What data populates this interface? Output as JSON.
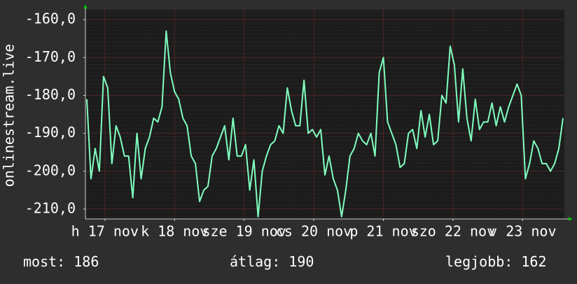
{
  "chart_data": {
    "type": "line",
    "y_label": "onlinestream.live",
    "color": "#80ffbf",
    "grid": true,
    "xlim": [
      0,
      172
    ],
    "xticks": [
      {
        "value": 7,
        "label": "h 17 nov"
      },
      {
        "value": 32,
        "label": "k 18 nov"
      },
      {
        "value": 57,
        "label": "sze 19 nov"
      },
      {
        "value": 82,
        "label": "cs 20 nov"
      },
      {
        "value": 107,
        "label": "p 21 nov"
      },
      {
        "value": 132,
        "label": "szo 22 nov"
      },
      {
        "value": 157,
        "label": "v 23 nov"
      }
    ],
    "ylim": [
      -212.6,
      -157.4
    ],
    "yticks": [
      {
        "value": -160,
        "label": "-160,0"
      },
      {
        "value": -170,
        "label": "-170,0"
      },
      {
        "value": -180,
        "label": "-180,0"
      },
      {
        "value": -190,
        "label": "-190,0"
      },
      {
        "value": -200,
        "label": "-200,0"
      },
      {
        "value": -210,
        "label": "-210,0"
      }
    ],
    "x": [
      0.5,
      2,
      3.5,
      5,
      6.5,
      8,
      9.5,
      11,
      12.5,
      14,
      15.5,
      17,
      18.5,
      20,
      21.5,
      23,
      24.5,
      26,
      27.5,
      29,
      30.5,
      32,
      33.5,
      35,
      36.5,
      38,
      39.5,
      41,
      42.5,
      44,
      45.5,
      47,
      48.5,
      50,
      51.5,
      53,
      54.5,
      56,
      57.5,
      59,
      60.5,
      62,
      63.5,
      65,
      66.5,
      68,
      69.5,
      71,
      72.5,
      74,
      75.5,
      77,
      78.5,
      80,
      81.5,
      83,
      84.5,
      86,
      87.5,
      89,
      90.5,
      92,
      93.5,
      95,
      96.5,
      98,
      99.5,
      101,
      102.5,
      104,
      105.5,
      107,
      108.5,
      110,
      111.5,
      113,
      114.5,
      116,
      117.5,
      119,
      120.5,
      122,
      123.5,
      125,
      126.5,
      128,
      129.5,
      131,
      132.5,
      134,
      135.5,
      137,
      138.5,
      140,
      141.5,
      143,
      144.5,
      146,
      147.5,
      149,
      150.5,
      152,
      153.5,
      155,
      156.5,
      158,
      159.5,
      161,
      162.5,
      164,
      165.5,
      167,
      168.5,
      170,
      171.5
    ],
    "values": [
      -181,
      -202,
      -194,
      -200,
      -175,
      -178,
      -198,
      -188,
      -191,
      -196,
      -196,
      -207,
      -190,
      -202,
      -194,
      -191,
      -186,
      -187,
      -183,
      -163,
      -174,
      -179,
      -181,
      -186,
      -188,
      -196,
      -198,
      -208,
      -205,
      -204,
      -196,
      -194,
      -191,
      -188,
      -197,
      -186,
      -196,
      -196,
      -193,
      -205,
      -197,
      -212,
      -200,
      -196,
      -193,
      -192,
      -188,
      -190,
      -178,
      -184,
      -188,
      -188,
      -176,
      -190,
      -189,
      -191,
      -189,
      -201,
      -196,
      -202,
      -205,
      -212,
      -205,
      -196,
      -194,
      -190,
      -192,
      -193,
      -190,
      -196,
      -174,
      -170,
      -187,
      -190,
      -193,
      -199,
      -198,
      -190,
      -189,
      -194,
      -184,
      -191,
      -185,
      -193,
      -192,
      -180,
      -182,
      -167,
      -172,
      -187,
      -173,
      -186,
      -192,
      -181,
      -189,
      -187,
      -187,
      -182,
      -188,
      -183,
      -187,
      -183,
      -180,
      -177,
      -180,
      -202,
      -198,
      -192,
      -194,
      -198,
      -198,
      -200,
      -198,
      -194,
      -186
    ],
    "stats": [
      {
        "label": "most:",
        "value": 186
      },
      {
        "label": "átlag:",
        "value": 190
      },
      {
        "label": "legjobb:",
        "value": 162
      }
    ]
  }
}
